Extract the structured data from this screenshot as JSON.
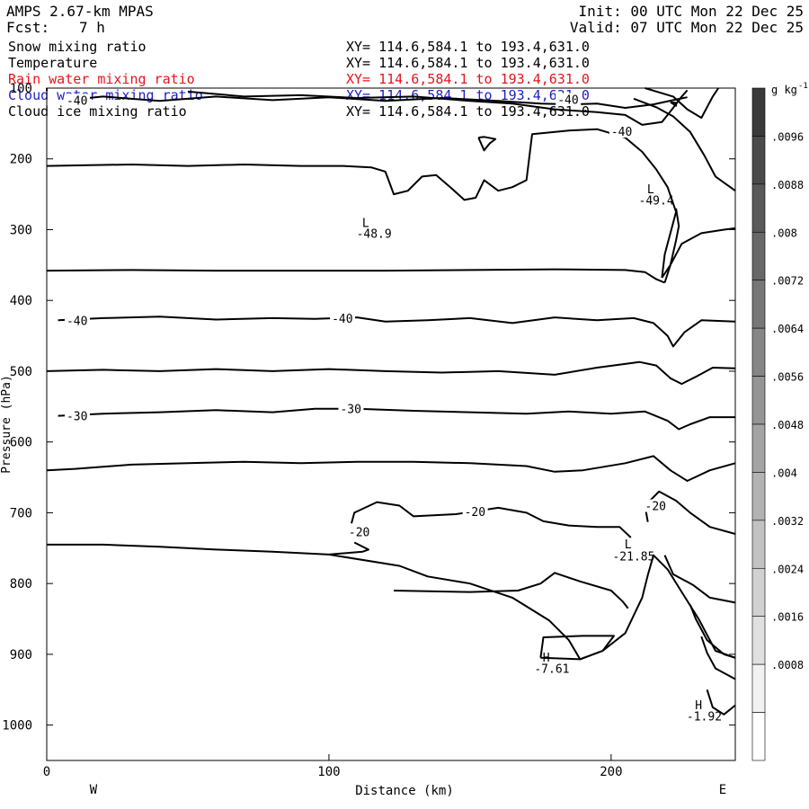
{
  "header": {
    "model": "AMPS 2.67-km MPAS",
    "fcst_label": "Fcst:",
    "fcst_value": "7 h",
    "init": "Init: 00 UTC Mon 22 Dec 25",
    "valid": "Valid: 07 UTC Mon 22 Dec 25"
  },
  "fields": [
    {
      "name": "Snow mixing ratio",
      "xy": "XY= 114.6,584.1 to 193.4,631.0",
      "color": "#000000"
    },
    {
      "name": "Temperature",
      "xy": "XY= 114.6,584.1 to 193.4,631.0",
      "color": "#000000"
    },
    {
      "name": "Rain water mixing ratio",
      "xy": "XY= 114.6,584.1 to 193.4,631.0",
      "color": "#e8141e"
    },
    {
      "name": "Cloud water mixing ratio",
      "xy": "XY= 114.6,584.1 to 193.4,631.0",
      "color": "#1e1ec8"
    },
    {
      "name": "Cloud ice mixing ratio",
      "xy": "XY= 114.6,584.1 to 193.4,631.0",
      "color": "#000000"
    }
  ],
  "chart_data": {
    "type": "contour",
    "xlabel": "Distance (km)",
    "ylabel": "Pressure (hPa)",
    "xlim": [
      0,
      244
    ],
    "ylim": [
      1050,
      100
    ],
    "xticks": [
      0,
      100,
      200
    ],
    "yticks": [
      100,
      200,
      300,
      400,
      500,
      600,
      700,
      800,
      900,
      1000
    ],
    "west_label": "W",
    "east_label": "E",
    "colorbar": {
      "unit": "g kg",
      "unit_exp": "-1",
      "labels": [
        ".0096",
        ".0088",
        ".008",
        ".0072",
        ".0064",
        ".0056",
        ".0048",
        ".004",
        ".0032",
        ".0024",
        ".0016",
        ".0008"
      ],
      "colors": [
        "#3a3a3a",
        "#4a4a4a",
        "#595959",
        "#686868",
        "#777777",
        "#868686",
        "#959595",
        "#a4a4a4",
        "#b3b3b3",
        "#c2c2c2",
        "#d1d1d1",
        "#e0e0e0",
        "#f2f2f2",
        "#ffffff"
      ]
    },
    "contour_labels": [
      {
        "text": "-40",
        "x": 7,
        "p": 117
      },
      {
        "text": "-40",
        "x": 181,
        "p": 116
      },
      {
        "text": "-40",
        "x": 200,
        "p": 161
      },
      {
        "text": "-40",
        "x": 7,
        "p": 428
      },
      {
        "text": "-40",
        "x": 101,
        "p": 425
      },
      {
        "text": "-30",
        "x": 7,
        "p": 563
      },
      {
        "text": "-30",
        "x": 104,
        "p": 553
      },
      {
        "text": "-20",
        "x": 148,
        "p": 698
      },
      {
        "text": "-20",
        "x": 107,
        "p": 727
      },
      {
        "text": "-20",
        "x": 212,
        "p": 690
      }
    ],
    "extrema": [
      {
        "kind": "L",
        "value": "-48.9",
        "x": 113,
        "p": 290,
        "vx": 116,
        "vp": 305
      },
      {
        "kind": "L",
        "value": "-49.4",
        "x": 214,
        "p": 242,
        "vx": 216,
        "vp": 258
      },
      {
        "kind": "L",
        "value": "-21.85",
        "x": 206,
        "p": 744,
        "vx": 208,
        "vp": 761
      },
      {
        "kind": "H",
        "value": "-7.61",
        "x": 177,
        "p": 904,
        "vx": 179,
        "vp": 920
      },
      {
        "kind": "H",
        "value": "-1.92",
        "x": 231,
        "p": 971,
        "vx": 233,
        "vp": 987
      }
    ],
    "isotherms": [
      [
        [
          7,
          117
        ],
        [
          20,
          112
        ],
        [
          40,
          118
        ],
        [
          60,
          112
        ],
        [
          80,
          117
        ],
        [
          100,
          113
        ],
        [
          120,
          118
        ],
        [
          140,
          114
        ],
        [
          160,
          118
        ],
        [
          175,
          122
        ],
        [
          186,
          123
        ],
        [
          195,
          122
        ],
        [
          205,
          128
        ],
        [
          215,
          123
        ],
        [
          222,
          117
        ],
        [
          227,
          113
        ]
      ],
      [
        [
          0,
          100
        ],
        [
          0,
          104
        ]
      ],
      [
        [
          50,
          105
        ],
        [
          70,
          112
        ],
        [
          90,
          110
        ],
        [
          110,
          114
        ],
        [
          130,
          112
        ],
        [
          150,
          118
        ],
        [
          165,
          122
        ],
        [
          180,
          130
        ],
        [
          195,
          134
        ],
        [
          205,
          138
        ],
        [
          211,
          152
        ],
        [
          218,
          148
        ],
        [
          222,
          128
        ],
        [
          225,
          112
        ],
        [
          227,
          103
        ]
      ],
      [
        [
          212,
          100
        ],
        [
          222,
          112
        ],
        [
          227,
          130
        ],
        [
          232,
          142
        ],
        [
          236,
          112
        ],
        [
          238,
          100
        ]
      ],
      [
        [
          0,
          210
        ],
        [
          15,
          209
        ],
        [
          30,
          208
        ],
        [
          50,
          210
        ],
        [
          70,
          208
        ],
        [
          90,
          210
        ],
        [
          105,
          210
        ],
        [
          115,
          212
        ],
        [
          120,
          218
        ],
        [
          123,
          250
        ],
        [
          128,
          245
        ],
        [
          133,
          225
        ],
        [
          138,
          223
        ],
        [
          143,
          240
        ],
        [
          148,
          258
        ],
        [
          152,
          255
        ],
        [
          155,
          230
        ],
        [
          160,
          245
        ],
        [
          165,
          240
        ],
        [
          170,
          230
        ],
        [
          172,
          165
        ],
        [
          185,
          160
        ],
        [
          195,
          158
        ],
        [
          205,
          170
        ],
        [
          211,
          190
        ],
        [
          216,
          215
        ],
        [
          220,
          240
        ],
        [
          223,
          275
        ],
        [
          221,
          305
        ],
        [
          219,
          335
        ],
        [
          218,
          368
        ]
      ],
      [
        [
          218,
          368
        ],
        [
          221,
          350
        ],
        [
          225,
          320
        ],
        [
          232,
          305
        ],
        [
          240,
          300
        ],
        [
          244,
          298
        ]
      ],
      [
        [
          208,
          115
        ],
        [
          216,
          127
        ],
        [
          222,
          140
        ],
        [
          228,
          162
        ],
        [
          233,
          195
        ],
        [
          237,
          225
        ],
        [
          244,
          245
        ]
      ],
      [
        [
          221,
          120
        ],
        [
          223,
          125
        ],
        [
          223,
          121
        ],
        [
          221,
          120
        ]
      ],
      [
        [
          153,
          170
        ],
        [
          155,
          188
        ],
        [
          157,
          178
        ],
        [
          159,
          172
        ],
        [
          155,
          169
        ],
        [
          153,
          170
        ]
      ],
      [
        [
          0,
          358
        ],
        [
          30,
          357
        ],
        [
          60,
          358
        ],
        [
          90,
          358
        ],
        [
          120,
          358
        ],
        [
          150,
          357
        ],
        [
          180,
          356
        ],
        [
          205,
          357
        ],
        [
          212,
          360
        ],
        [
          216,
          370
        ],
        [
          219,
          375
        ]
      ],
      [
        [
          219,
          375
        ],
        [
          221,
          350
        ],
        [
          223,
          315
        ],
        [
          224,
          295
        ],
        [
          223,
          270
        ]
      ],
      [
        [
          4,
          428
        ],
        [
          20,
          425
        ],
        [
          40,
          423
        ],
        [
          60,
          427
        ],
        [
          80,
          425
        ],
        [
          95,
          426
        ],
        [
          110,
          424
        ],
        [
          120,
          430
        ],
        [
          135,
          428
        ],
        [
          150,
          425
        ],
        [
          165,
          432
        ],
        [
          180,
          424
        ],
        [
          195,
          428
        ],
        [
          208,
          425
        ],
        [
          215,
          432
        ],
        [
          220,
          450
        ],
        [
          222,
          465
        ],
        [
          226,
          445
        ],
        [
          232,
          428
        ],
        [
          244,
          430
        ]
      ],
      [
        [
          0,
          500
        ],
        [
          20,
          498
        ],
        [
          40,
          500
        ],
        [
          60,
          497
        ],
        [
          80,
          500
        ],
        [
          100,
          497
        ],
        [
          120,
          500
        ],
        [
          140,
          502
        ],
        [
          160,
          500
        ],
        [
          180,
          505
        ],
        [
          195,
          495
        ],
        [
          210,
          487
        ],
        [
          216,
          492
        ],
        [
          221,
          510
        ],
        [
          225,
          518
        ],
        [
          230,
          508
        ],
        [
          236,
          495
        ],
        [
          244,
          496
        ]
      ],
      [
        [
          4,
          563
        ],
        [
          20,
          560
        ],
        [
          40,
          558
        ],
        [
          60,
          555
        ],
        [
          80,
          558
        ],
        [
          95,
          553
        ],
        [
          110,
          553
        ],
        [
          130,
          556
        ],
        [
          150,
          558
        ],
        [
          170,
          560
        ],
        [
          185,
          557
        ],
        [
          200,
          560
        ],
        [
          212,
          557
        ],
        [
          220,
          570
        ],
        [
          224,
          582
        ],
        [
          228,
          575
        ],
        [
          235,
          565
        ],
        [
          244,
          565
        ]
      ],
      [
        [
          0,
          640
        ],
        [
          10,
          638
        ],
        [
          30,
          632
        ],
        [
          50,
          630
        ],
        [
          70,
          628
        ],
        [
          90,
          630
        ],
        [
          110,
          628
        ],
        [
          130,
          628
        ],
        [
          150,
          630
        ],
        [
          170,
          634
        ],
        [
          180,
          642
        ],
        [
          190,
          640
        ],
        [
          205,
          630
        ],
        [
          215,
          620
        ],
        [
          221,
          640
        ],
        [
          227,
          655
        ],
        [
          235,
          640
        ],
        [
          244,
          630
        ]
      ],
      [
        [
          108,
          715
        ],
        [
          109,
          700
        ],
        [
          117,
          685
        ],
        [
          125,
          690
        ],
        [
          130,
          705
        ],
        [
          145,
          702
        ],
        [
          160,
          693
        ],
        [
          170,
          700
        ],
        [
          176,
          712
        ],
        [
          185,
          718
        ],
        [
          195,
          720
        ],
        [
          203,
          720
        ],
        [
          207,
          735
        ]
      ],
      [
        [
          213,
          713
        ],
        [
          212,
          690
        ],
        [
          217,
          670
        ],
        [
          223,
          683
        ],
        [
          228,
          700
        ],
        [
          235,
          720
        ],
        [
          244,
          730
        ]
      ],
      [
        [
          0,
          745
        ],
        [
          20,
          745
        ],
        [
          40,
          748
        ],
        [
          60,
          752
        ],
        [
          80,
          755
        ],
        [
          100,
          759
        ],
        [
          112,
          755
        ],
        [
          114,
          752
        ],
        [
          109,
          742
        ]
      ],
      [
        [
          100,
          759
        ],
        [
          125,
          775
        ],
        [
          135,
          790
        ],
        [
          150,
          800
        ],
        [
          165,
          820
        ],
        [
          178,
          852
        ],
        [
          185,
          880
        ],
        [
          189,
          907
        ],
        [
          197,
          895
        ],
        [
          205,
          870
        ],
        [
          211,
          820
        ],
        [
          213,
          788
        ],
        [
          215,
          760
        ],
        [
          220,
          780
        ],
        [
          225,
          812
        ],
        [
          231,
          850
        ],
        [
          237,
          895
        ],
        [
          244,
          905
        ]
      ],
      [
        [
          123,
          810
        ],
        [
          150,
          812
        ],
        [
          167,
          810
        ],
        [
          175,
          800
        ],
        [
          180,
          785
        ],
        [
          189,
          797
        ],
        [
          200,
          810
        ],
        [
          204,
          825
        ],
        [
          206,
          835
        ]
      ],
      [
        [
          175,
          905
        ],
        [
          176,
          876
        ],
        [
          190,
          874
        ],
        [
          201,
          874
        ],
        [
          197,
          895
        ],
        [
          189,
          907
        ],
        [
          175,
          905
        ]
      ],
      [
        [
          219,
          760
        ],
        [
          222,
          787
        ],
        [
          229,
          802
        ],
        [
          235,
          820
        ],
        [
          244,
          827
        ]
      ],
      [
        [
          228,
          830
        ],
        [
          230,
          850
        ],
        [
          234,
          880
        ],
        [
          240,
          900
        ],
        [
          244,
          905
        ]
      ],
      [
        [
          232,
          875
        ],
        [
          234,
          898
        ],
        [
          237,
          920
        ],
        [
          244,
          935
        ]
      ],
      [
        [
          234,
          950
        ],
        [
          236,
          975
        ],
        [
          240,
          985
        ],
        [
          244,
          972
        ]
      ]
    ]
  }
}
